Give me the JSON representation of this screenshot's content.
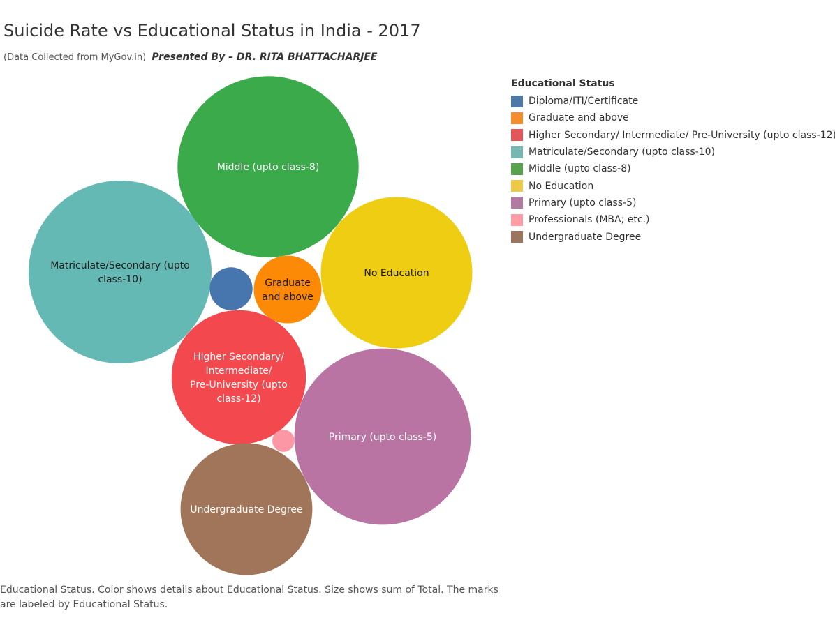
{
  "header": {
    "title": "Suicide Rate vs Educational Status in India - 2017",
    "source": "(Data Collected from MyGov.in)",
    "presenter": "Presented By – DR. RITA BHATTACHARJEE"
  },
  "legend": {
    "title": "Educational Status",
    "items": [
      {
        "label": "Diploma/ITI/Certificate",
        "color": "#4e79a7"
      },
      {
        "label": "Graduate and above",
        "color": "#f28e2b"
      },
      {
        "label": "Higher Secondary/ Intermediate/ Pre-University (upto class-12)",
        "color": "#e15759"
      },
      {
        "label": "Matriculate/Secondary (upto class-10)",
        "color": "#76b7b2"
      },
      {
        "label": "Middle (upto class-8)",
        "color": "#59a14f"
      },
      {
        "label": "No Education",
        "color": "#edc948"
      },
      {
        "label": "Primary (upto class-5)",
        "color": "#b07aa1"
      },
      {
        "label": "Professionals (MBA; etc.)",
        "color": "#ff9da7"
      },
      {
        "label": "Undergraduate Degree",
        "color": "#9c755f"
      }
    ]
  },
  "caption": "Educational Status.  Color shows details about Educational Status.  Size shows sum of Total.  The marks are labeled by Educational Status.",
  "chart_data": {
    "type": "bubble",
    "size_measure": "sum of Total",
    "color_measure": "Educational Status",
    "bubbles": [
      {
        "category": "Middle (upto class-8)",
        "value": 100,
        "color": "#3aaa4a",
        "label_lines": [
          "Middle (upto class-8)"
        ],
        "label_color": "#ffffff"
      },
      {
        "category": "Matriculate/Secondary (upto class-10)",
        "value": 102,
        "color": "#64b9b4",
        "label_lines": [
          "Matriculate/Secondary (upto",
          "class-10)"
        ],
        "label_color": "#1a1a1a"
      },
      {
        "category": "No Education",
        "value": 70,
        "color": "#efcd12",
        "label_lines": [
          "No Education"
        ],
        "label_color": "#1a1a1a"
      },
      {
        "category": "Primary (upto class-5)",
        "value": 95,
        "color": "#ba74a4",
        "label_lines": [
          "Primary (upto class-5)"
        ],
        "label_color": "#ffffff"
      },
      {
        "category": "Higher Secondary/ Intermediate/ Pre-University (upto class-12)",
        "value": 55,
        "color": "#f2484e",
        "label_lines": [
          "Higher Secondary/",
          "Intermediate/",
          "Pre-University (upto",
          "class-12)"
        ],
        "label_color": "#ffffff"
      },
      {
        "category": "Undergraduate Degree",
        "value": 53,
        "color": "#a0755a",
        "label_lines": [
          "Undergraduate Degree"
        ],
        "label_color": "#ffffff"
      },
      {
        "category": "Graduate and above",
        "value": 14,
        "color": "#fc8a06",
        "label_lines": [
          "Graduate",
          "and above"
        ],
        "label_color": "#1a1a1a"
      },
      {
        "category": "Diploma/ITI/Certificate",
        "value": 5.6,
        "color": "#4775ad",
        "label_lines": [],
        "label_color": "#ffffff"
      },
      {
        "category": "Professionals (MBA; etc.)",
        "value": 1.5,
        "color": "#fc98a5",
        "label_lines": [],
        "label_color": "#ffffff"
      }
    ]
  }
}
